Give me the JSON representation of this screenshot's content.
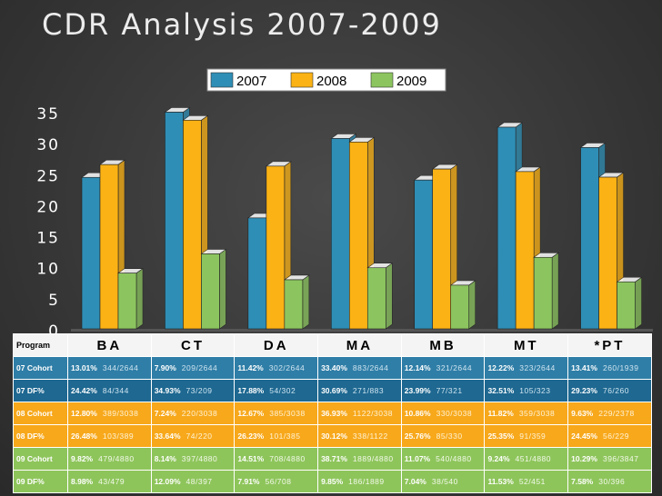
{
  "title": "CDR Analysis 2007-2009",
  "chart_data": {
    "type": "bar",
    "categories": [
      "BA",
      "CT",
      "DA",
      "MA",
      "MB",
      "MT",
      "*PT"
    ],
    "series": [
      {
        "name": "2007",
        "values": [
          24.42,
          34.93,
          17.88,
          30.69,
          23.99,
          32.51,
          29.23
        ],
        "color": "#2f8eb5"
      },
      {
        "name": "2008",
        "values": [
          26.48,
          33.64,
          26.23,
          30.12,
          25.76,
          25.35,
          24.45
        ],
        "color": "#fbb214"
      },
      {
        "name": "2009",
        "values": [
          8.98,
          12.09,
          7.91,
          9.85,
          7.04,
          11.53,
          7.58
        ],
        "color": "#8cc55f"
      }
    ],
    "yticks": [
      0,
      5,
      10,
      15,
      20,
      25,
      30,
      35
    ],
    "ylim": [
      0,
      35
    ],
    "legend": "top-center"
  },
  "table": {
    "header": [
      "Program",
      "BA",
      "CT",
      "DA",
      "MA",
      "MB",
      "MT",
      "*PT"
    ],
    "rows": [
      {
        "label": "07 Cohort",
        "cells": [
          {
            "pct": "13.01%",
            "ratio": "344/2644"
          },
          {
            "pct": "7.90%",
            "ratio": "209/2644"
          },
          {
            "pct": "11.42%",
            "ratio": "302/2644"
          },
          {
            "pct": "33.40%",
            "ratio": "883/2644"
          },
          {
            "pct": "12.14%",
            "ratio": "321/2644"
          },
          {
            "pct": "12.22%",
            "ratio": "323/2644"
          },
          {
            "pct": "13.41%",
            "ratio": "260/1939"
          }
        ]
      },
      {
        "label": "07 DF%",
        "cells": [
          {
            "pct": "24.42%",
            "ratio": "84/344"
          },
          {
            "pct": "34.93%",
            "ratio": "73/209"
          },
          {
            "pct": "17.88%",
            "ratio": "54/302"
          },
          {
            "pct": "30.69%",
            "ratio": "271/883"
          },
          {
            "pct": "23.99%",
            "ratio": "77/321"
          },
          {
            "pct": "32.51%",
            "ratio": "105/323"
          },
          {
            "pct": "29.23%",
            "ratio": "76/260"
          }
        ]
      },
      {
        "label": "08 Cohort",
        "cells": [
          {
            "pct": "12.80%",
            "ratio": "389/3038"
          },
          {
            "pct": "7.24%",
            "ratio": "220/3038"
          },
          {
            "pct": "12.67%",
            "ratio": "385/3038"
          },
          {
            "pct": "36.93%",
            "ratio": "1122/3038"
          },
          {
            "pct": "10.86%",
            "ratio": "330/3038"
          },
          {
            "pct": "11.82%",
            "ratio": "359/3038"
          },
          {
            "pct": "9.63%",
            "ratio": "229/2378"
          }
        ]
      },
      {
        "label": "08 DF%",
        "cells": [
          {
            "pct": "26.48%",
            "ratio": "103/389"
          },
          {
            "pct": "33.64%",
            "ratio": "74/220"
          },
          {
            "pct": "26.23%",
            "ratio": "101/385"
          },
          {
            "pct": "30.12%",
            "ratio": "338/1122"
          },
          {
            "pct": "25.76%",
            "ratio": "85/330"
          },
          {
            "pct": "25.35%",
            "ratio": "91/359"
          },
          {
            "pct": "24.45%",
            "ratio": "56/229"
          }
        ]
      },
      {
        "label": "09 Cohort",
        "cells": [
          {
            "pct": "9.82%",
            "ratio": "479/4880"
          },
          {
            "pct": "8.14%",
            "ratio": "397/4880"
          },
          {
            "pct": "14.51%",
            "ratio": "708/4880"
          },
          {
            "pct": "38.71%",
            "ratio": "1889/4880"
          },
          {
            "pct": "11.07%",
            "ratio": "540/4880"
          },
          {
            "pct": "9.24%",
            "ratio": "451/4880"
          },
          {
            "pct": "10.29%",
            "ratio": "396/3847"
          }
        ]
      },
      {
        "label": "09 DF%",
        "cells": [
          {
            "pct": "8.98%",
            "ratio": "43/479"
          },
          {
            "pct": "12.09%",
            "ratio": "48/397"
          },
          {
            "pct": "7.91%",
            "ratio": "56/708"
          },
          {
            "pct": "9.85%",
            "ratio": "186/1889"
          },
          {
            "pct": "7.04%",
            "ratio": "38/540"
          },
          {
            "pct": "11.53%",
            "ratio": "52/451"
          },
          {
            "pct": "7.58%",
            "ratio": "30/396"
          }
        ]
      }
    ]
  }
}
